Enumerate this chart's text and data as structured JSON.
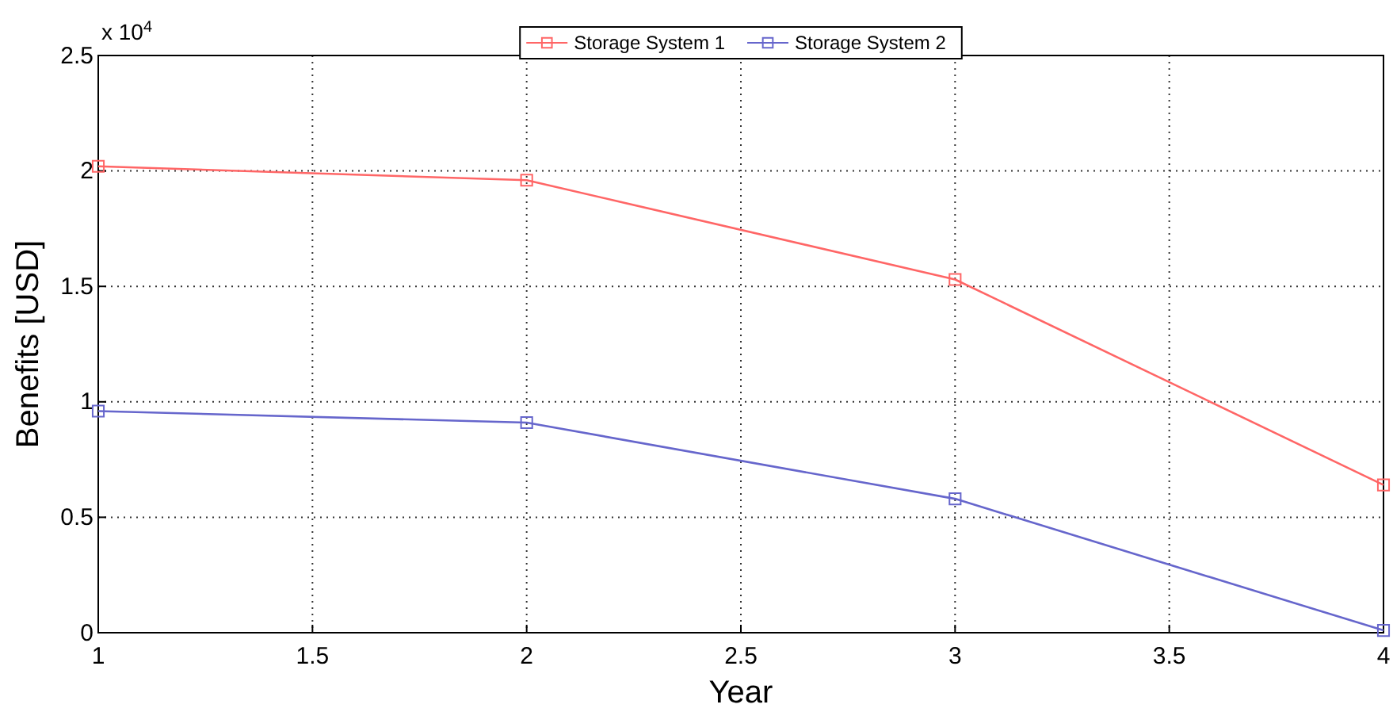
{
  "chart_data": {
    "type": "line",
    "xlabel": "Year",
    "ylabel": "Benefits [USD]",
    "x": [
      1,
      2,
      3,
      4
    ],
    "series": [
      {
        "name": "Storage System 1",
        "color": "#ff6666",
        "values": [
          2.02,
          1.96,
          1.53,
          0.64
        ]
      },
      {
        "name": "Storage System 2",
        "color": "#6666cc",
        "values": [
          0.96,
          0.91,
          0.58,
          0.01
        ]
      }
    ],
    "xlim": [
      1,
      4
    ],
    "xticks": [
      1,
      1.5,
      2,
      2.5,
      3,
      3.5,
      4
    ],
    "ylim": [
      0,
      2.5
    ],
    "yticks": [
      0,
      0.5,
      1,
      1.5,
      2,
      2.5
    ],
    "annotations": [
      "x 10$^{4}$"
    ],
    "grid": true,
    "legend": "top",
    "marker": "square",
    "line_style": "solid"
  }
}
